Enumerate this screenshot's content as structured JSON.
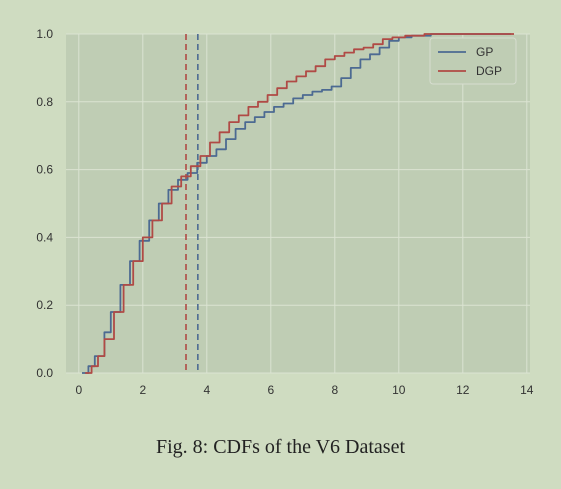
{
  "caption": "Fig. 8: CDFs of the V6 Dataset",
  "colors": {
    "page_background": "#cfdcc1",
    "plot_background": "#bfcdb4",
    "grid": "#dbe3d2",
    "tick_text": "#333333"
  },
  "chart_data": {
    "type": "line",
    "title": "",
    "xlabel": "",
    "ylabel": "",
    "xlim": [
      -0.4,
      14.1
    ],
    "ylim": [
      0.0,
      1.0
    ],
    "xticks": [
      0,
      2,
      4,
      6,
      8,
      10,
      12,
      14
    ],
    "xtick_labels": [
      "0",
      "2",
      "4",
      "6",
      "8",
      "10",
      "12",
      "14"
    ],
    "yticks": [
      0.0,
      0.2,
      0.4,
      0.6,
      0.8,
      1.0
    ],
    "ytick_labels": [
      "0.0",
      "0.2",
      "0.4",
      "0.6",
      "0.8",
      "1.0"
    ],
    "grid": true,
    "legend_position": "top-right",
    "series": [
      {
        "name": "GP",
        "color": "#4c6a92",
        "points": [
          [
            0.1,
            0.0
          ],
          [
            0.3,
            0.02
          ],
          [
            0.5,
            0.05
          ],
          [
            0.8,
            0.12
          ],
          [
            1.0,
            0.18
          ],
          [
            1.3,
            0.26
          ],
          [
            1.6,
            0.33
          ],
          [
            1.9,
            0.39
          ],
          [
            2.2,
            0.45
          ],
          [
            2.5,
            0.5
          ],
          [
            2.8,
            0.54
          ],
          [
            3.1,
            0.57
          ],
          [
            3.4,
            0.59
          ],
          [
            3.7,
            0.62
          ],
          [
            4.0,
            0.64
          ],
          [
            4.3,
            0.66
          ],
          [
            4.6,
            0.69
          ],
          [
            4.9,
            0.72
          ],
          [
            5.2,
            0.74
          ],
          [
            5.5,
            0.755
          ],
          [
            5.8,
            0.77
          ],
          [
            6.1,
            0.785
          ],
          [
            6.4,
            0.795
          ],
          [
            6.7,
            0.81
          ],
          [
            7.0,
            0.82
          ],
          [
            7.3,
            0.83
          ],
          [
            7.6,
            0.835
          ],
          [
            7.9,
            0.845
          ],
          [
            8.2,
            0.87
          ],
          [
            8.5,
            0.9
          ],
          [
            8.8,
            0.925
          ],
          [
            9.1,
            0.94
          ],
          [
            9.4,
            0.96
          ],
          [
            9.7,
            0.98
          ],
          [
            10.0,
            0.99
          ],
          [
            10.4,
            0.995
          ],
          [
            11.0,
            1.0
          ],
          [
            12.0,
            1.0
          ],
          [
            13.5,
            1.0
          ]
        ]
      },
      {
        "name": "DGP",
        "color": "#b04a45",
        "points": [
          [
            0.2,
            0.0
          ],
          [
            0.4,
            0.02
          ],
          [
            0.6,
            0.05
          ],
          [
            0.8,
            0.1
          ],
          [
            1.1,
            0.18
          ],
          [
            1.4,
            0.26
          ],
          [
            1.7,
            0.33
          ],
          [
            2.0,
            0.4
          ],
          [
            2.3,
            0.45
          ],
          [
            2.6,
            0.5
          ],
          [
            2.9,
            0.55
          ],
          [
            3.2,
            0.58
          ],
          [
            3.5,
            0.61
          ],
          [
            3.8,
            0.64
          ],
          [
            4.1,
            0.68
          ],
          [
            4.4,
            0.71
          ],
          [
            4.7,
            0.74
          ],
          [
            5.0,
            0.76
          ],
          [
            5.3,
            0.785
          ],
          [
            5.6,
            0.8
          ],
          [
            5.9,
            0.82
          ],
          [
            6.2,
            0.84
          ],
          [
            6.5,
            0.86
          ],
          [
            6.8,
            0.875
          ],
          [
            7.1,
            0.89
          ],
          [
            7.4,
            0.905
          ],
          [
            7.7,
            0.925
          ],
          [
            8.0,
            0.935
          ],
          [
            8.3,
            0.945
          ],
          [
            8.6,
            0.955
          ],
          [
            8.9,
            0.96
          ],
          [
            9.2,
            0.97
          ],
          [
            9.5,
            0.985
          ],
          [
            9.8,
            0.99
          ],
          [
            10.2,
            0.995
          ],
          [
            10.8,
            1.0
          ],
          [
            12.0,
            1.0
          ],
          [
            13.6,
            1.0
          ]
        ]
      }
    ],
    "vlines": [
      {
        "series": "DGP",
        "x": 3.35,
        "color": "#b04a45",
        "style": "dashed"
      },
      {
        "series": "GP",
        "x": 3.72,
        "color": "#4c6a92",
        "style": "dashed"
      }
    ]
  }
}
